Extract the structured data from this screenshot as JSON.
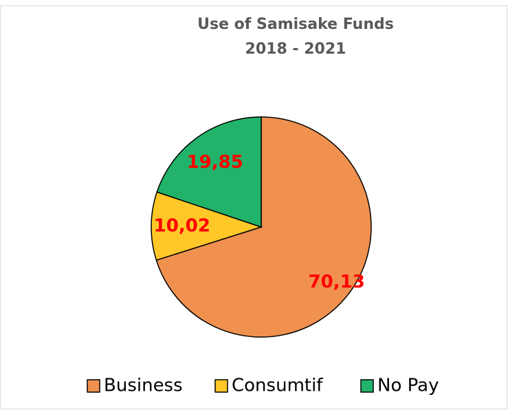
{
  "chart_data": {
    "type": "pie",
    "title": "Use of Samisake Funds",
    "subtitle": "2018 - 2021",
    "categories": [
      "Business",
      "Consumtif",
      "No Pay"
    ],
    "values": [
      70.13,
      10.02,
      19.85
    ],
    "value_labels": [
      "70,13",
      "10,02",
      "19,85"
    ],
    "colors": [
      "#f0914f",
      "#ffc727",
      "#21b36a"
    ],
    "legend": "bottom"
  }
}
